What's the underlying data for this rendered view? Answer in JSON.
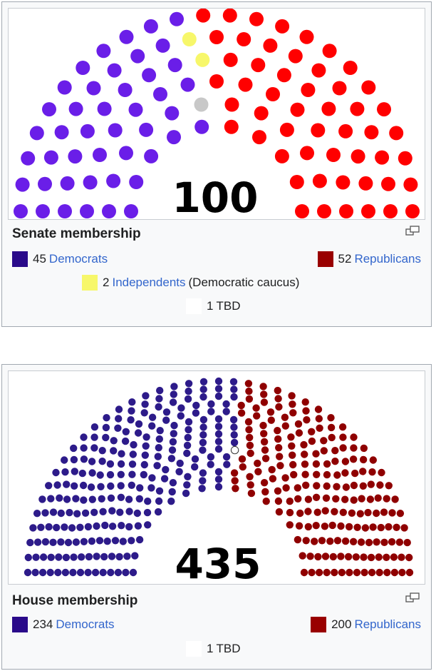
{
  "senate": {
    "total_label": "100",
    "caption": "Senate membership",
    "legend": [
      {
        "count": "45",
        "party": "Democrats",
        "color": "#2a0a8a"
      },
      {
        "count": "52",
        "party": "Republicans",
        "color": "#990000"
      },
      {
        "count": "2",
        "party": "Independents",
        "suffix": "(Democratic caucus)",
        "color": "#f7f76a"
      },
      {
        "count": "1",
        "party": "TBD",
        "color": "#ffffff"
      }
    ],
    "seat_colors": {
      "democrat": "#6a1ee8",
      "independent": "#f7f76a",
      "tbd": "#c8c8c8",
      "republican": "#ff0000"
    }
  },
  "house": {
    "total_label": "435",
    "caption": "House membership",
    "legend": [
      {
        "count": "234",
        "party": "Democrats",
        "color": "#2a0a8a"
      },
      {
        "count": "200",
        "party": "Republicans",
        "color": "#990000"
      },
      {
        "count": "1",
        "party": "TBD",
        "color": "#ffffff"
      }
    ],
    "seat_colors": {
      "democrat": "#2d1b8a",
      "tbd": "#ffffff",
      "republican": "#8f0000"
    }
  },
  "icons": {
    "enlarge": "enlarge-icon"
  }
}
